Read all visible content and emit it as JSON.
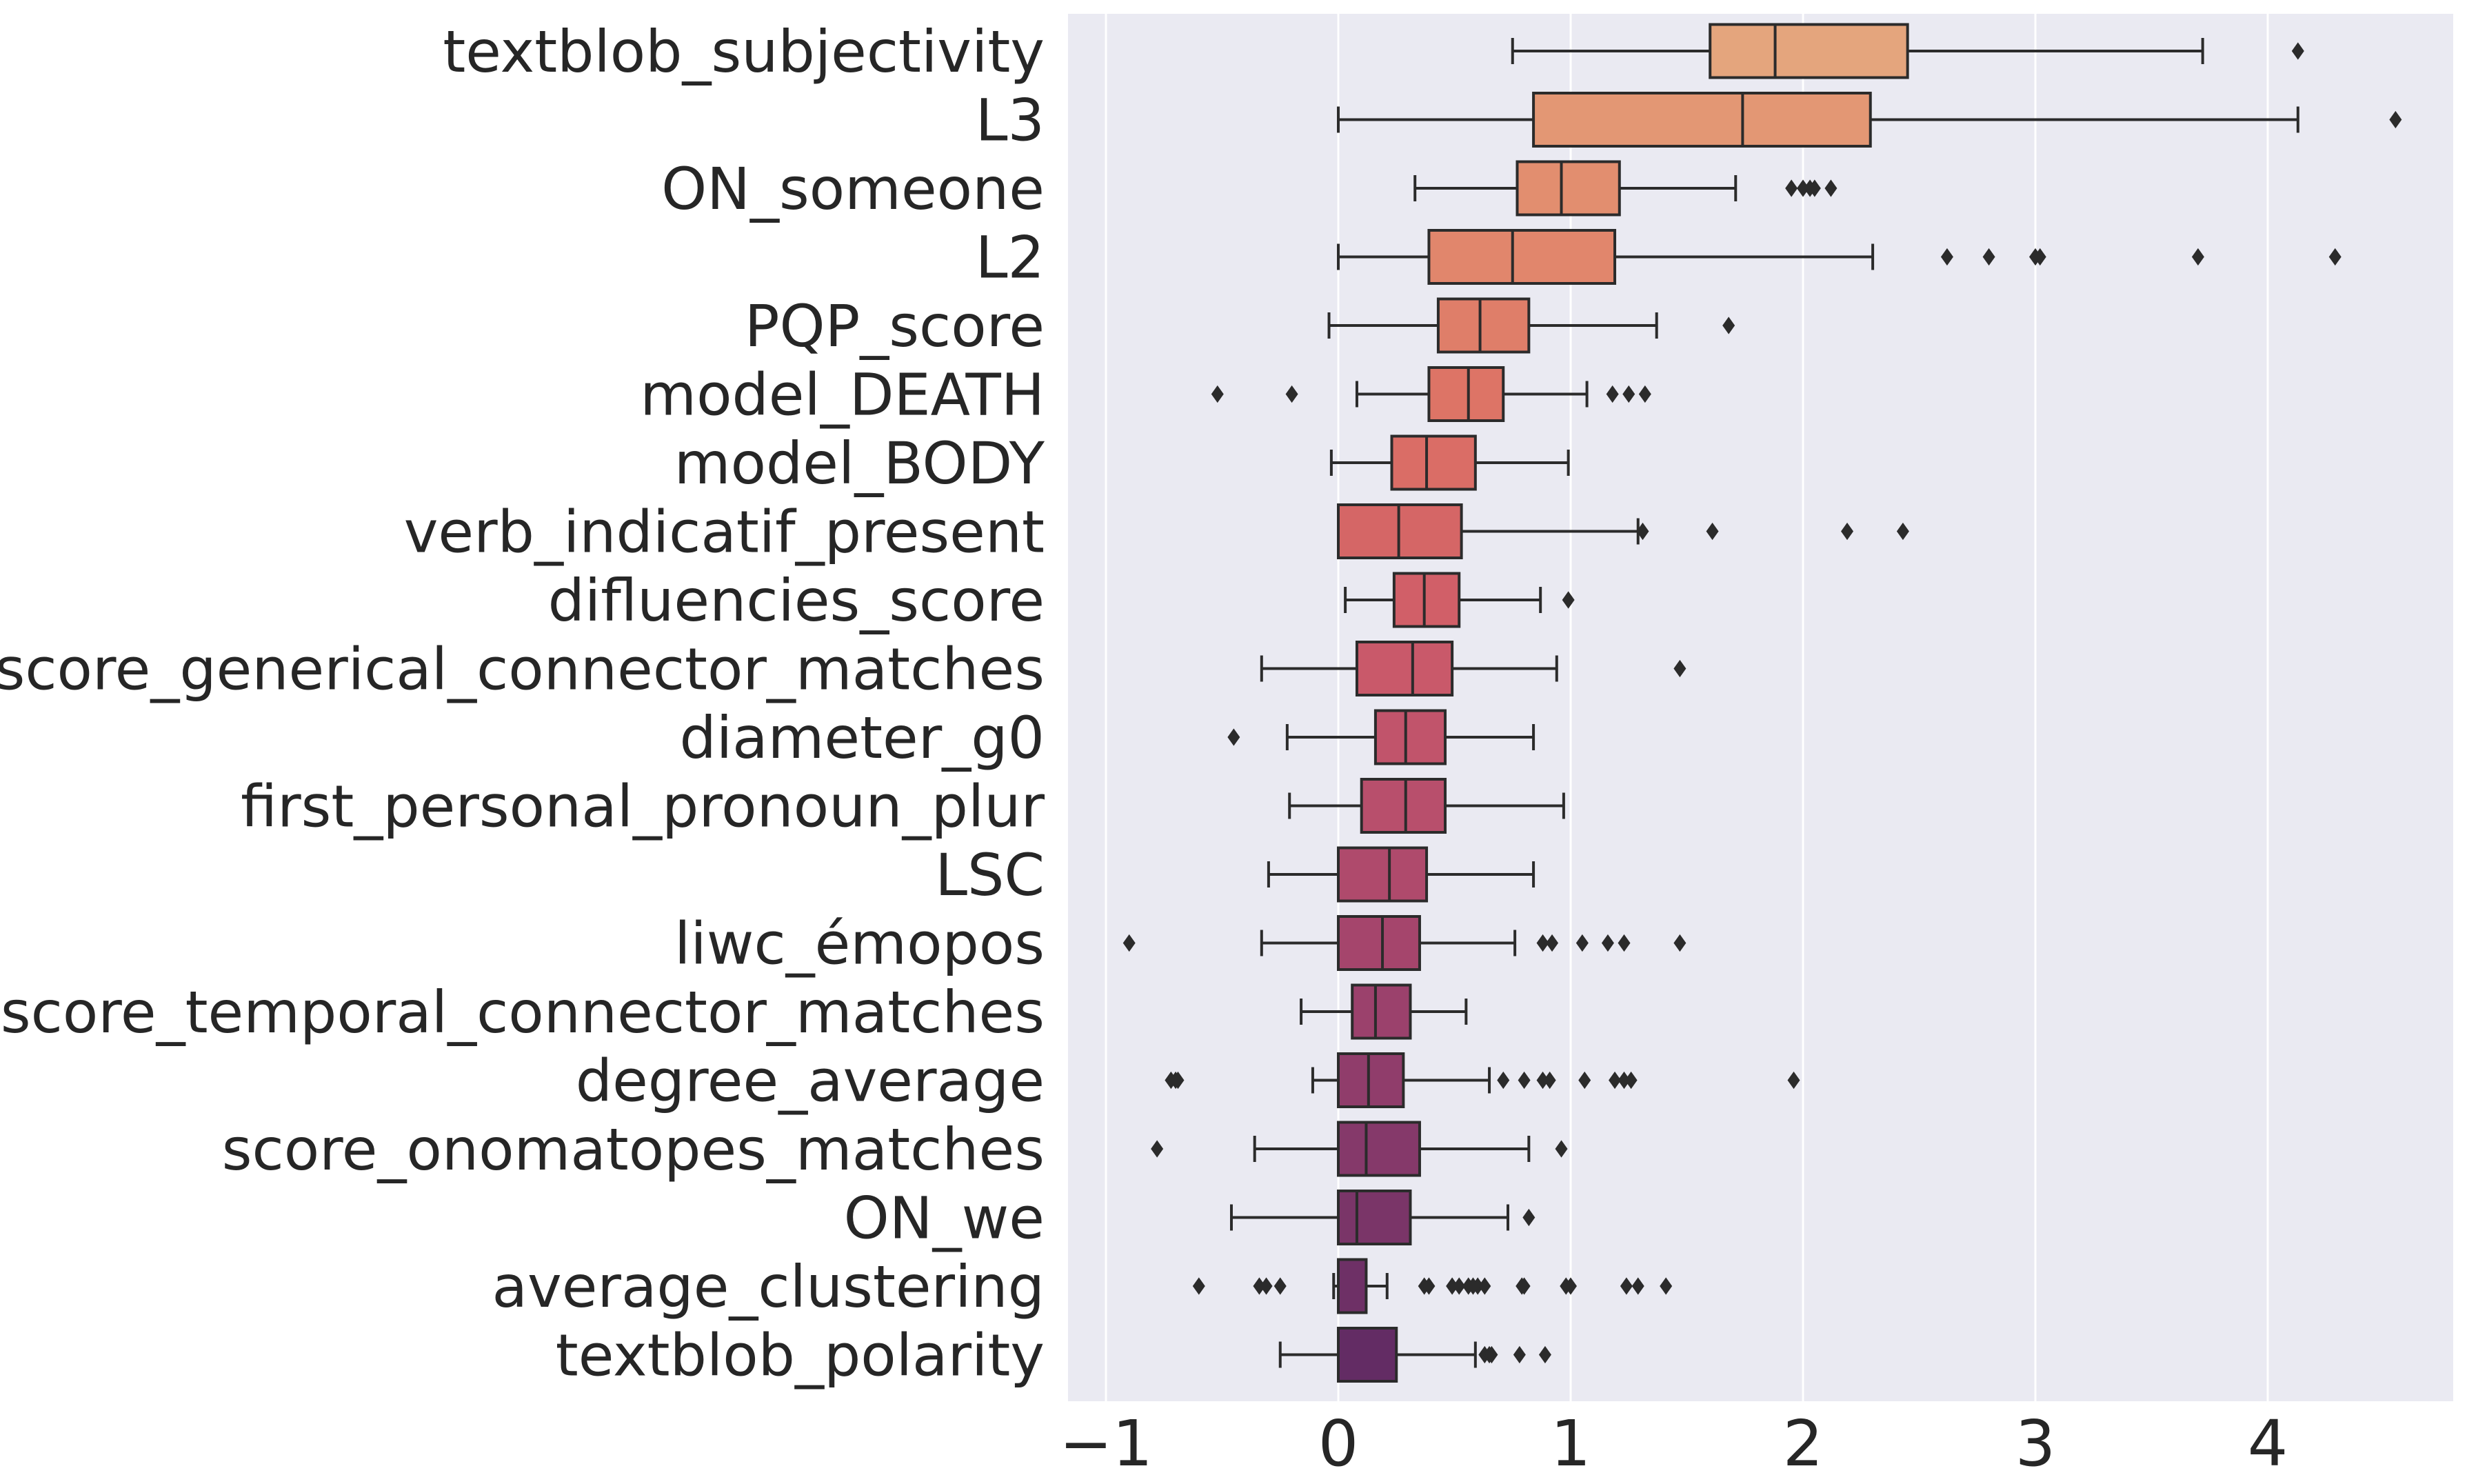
{
  "chart_data": {
    "type": "boxplot",
    "orientation": "horizontal",
    "title": "",
    "xlabel": "",
    "ylabel": "",
    "xlim": [
      -1.18,
      4.75
    ],
    "x_ticks": [
      -1,
      0,
      1,
      2,
      3,
      4
    ],
    "x_tick_labels": [
      "−1",
      "0",
      "1",
      "2",
      "3",
      "4"
    ],
    "grid": true,
    "background": "#EAEAF2",
    "palette": "flare",
    "categories": [
      {
        "label": "textblob_subjectivity",
        "whislo": 0.75,
        "q1": 1.6,
        "med": 1.88,
        "q3": 2.45,
        "whishi": 3.72,
        "fliers": [
          4.13
        ],
        "color": "#E4A57D"
      },
      {
        "label": "L3",
        "whislo": 0.0,
        "q1": 0.84,
        "med": 1.74,
        "q3": 2.29,
        "whishi": 4.13,
        "fliers": [
          4.55
        ],
        "color": "#E39774"
      },
      {
        "label": "ON_someone",
        "whislo": 0.33,
        "q1": 0.77,
        "med": 0.96,
        "q3": 1.21,
        "whishi": 1.71,
        "fliers": [
          1.95,
          2.0,
          2.03,
          2.05,
          2.12
        ],
        "color": "#E28E6F"
      },
      {
        "label": "L2",
        "whislo": 0.0,
        "q1": 0.39,
        "med": 0.75,
        "q3": 1.19,
        "whishi": 2.3,
        "fliers": [
          2.62,
          2.8,
          3.0,
          3.02,
          3.7,
          4.29
        ],
        "color": "#E1866C"
      },
      {
        "label": "PQP_score",
        "whislo": -0.04,
        "q1": 0.43,
        "med": 0.61,
        "q3": 0.82,
        "whishi": 1.37,
        "fliers": [
          1.68
        ],
        "color": "#DF7E69"
      },
      {
        "label": "model_DEATH",
        "whislo": 0.08,
        "q1": 0.39,
        "med": 0.56,
        "q3": 0.71,
        "whishi": 1.07,
        "fliers": [
          -0.52,
          -0.2,
          1.18,
          1.25,
          1.32
        ],
        "color": "#DD7466"
      },
      {
        "label": "model_BODY",
        "whislo": -0.03,
        "q1": 0.23,
        "med": 0.38,
        "q3": 0.59,
        "whishi": 0.99,
        "fliers": [],
        "color": "#DA6D66"
      },
      {
        "label": "verb_indicatif_present",
        "whislo": 0.0,
        "q1": 0.0,
        "med": 0.26,
        "q3": 0.53,
        "whishi": 1.29,
        "fliers": [
          1.31,
          1.61,
          2.19,
          2.43
        ],
        "color": "#D56666"
      },
      {
        "label": "difluencies_score",
        "whislo": 0.03,
        "q1": 0.24,
        "med": 0.37,
        "q3": 0.52,
        "whishi": 0.87,
        "fliers": [
          0.99
        ],
        "color": "#D15F68"
      },
      {
        "label": "score_generical_connector_matches",
        "whislo": -0.33,
        "q1": 0.08,
        "med": 0.32,
        "q3": 0.49,
        "whishi": 0.94,
        "fliers": [
          1.47
        ],
        "color": "#C9596A"
      },
      {
        "label": "diameter_g0",
        "whislo": -0.22,
        "q1": 0.16,
        "med": 0.29,
        "q3": 0.46,
        "whishi": 0.84,
        "fliers": [
          -0.45
        ],
        "color": "#C1546B"
      },
      {
        "label": "first_personal_pronoun_plur",
        "whislo": -0.21,
        "q1": 0.1,
        "med": 0.29,
        "q3": 0.46,
        "whishi": 0.97,
        "fliers": [],
        "color": "#B84F6C"
      },
      {
        "label": "LSC",
        "whislo": -0.3,
        "q1": 0.0,
        "med": 0.22,
        "q3": 0.38,
        "whishi": 0.84,
        "fliers": [],
        "color": "#AF4A6C"
      },
      {
        "label": "liwc_émopos",
        "whislo": -0.33,
        "q1": 0.0,
        "med": 0.19,
        "q3": 0.35,
        "whishi": 0.76,
        "fliers": [
          -0.9,
          0.88,
          0.92,
          1.05,
          1.16,
          1.23,
          1.47
        ],
        "color": "#A5456C"
      },
      {
        "label": "score_temporal_connector_matches",
        "whislo": -0.16,
        "q1": 0.06,
        "med": 0.16,
        "q3": 0.31,
        "whishi": 0.55,
        "fliers": [],
        "color": "#9B416C"
      },
      {
        "label": "degree_average",
        "whislo": -0.11,
        "q1": 0.0,
        "med": 0.13,
        "q3": 0.28,
        "whishi": 0.65,
        "fliers": [
          -0.72,
          -0.7,
          -0.69,
          0.71,
          0.8,
          0.88,
          0.91,
          1.06,
          1.19,
          1.23,
          1.26,
          1.96
        ],
        "color": "#903D6B"
      },
      {
        "label": "score_onomatopes_matches",
        "whislo": -0.36,
        "q1": 0.0,
        "med": 0.12,
        "q3": 0.35,
        "whishi": 0.82,
        "fliers": [
          -0.78,
          0.96
        ],
        "color": "#85396A"
      },
      {
        "label": "ON_we",
        "whislo": -0.46,
        "q1": 0.0,
        "med": 0.08,
        "q3": 0.31,
        "whishi": 0.73,
        "fliers": [
          0.82
        ],
        "color": "#7A3568"
      },
      {
        "label": "average_clustering",
        "whislo": -0.02,
        "q1": 0.0,
        "med": 0.0,
        "q3": 0.12,
        "whishi": 0.21,
        "fliers": [
          -0.6,
          -0.34,
          -0.31,
          -0.25,
          0.37,
          0.39,
          0.49,
          0.52,
          0.56,
          0.58,
          0.6,
          0.63,
          0.79,
          0.8,
          0.98,
          1.0,
          1.24,
          1.29,
          1.41
        ],
        "color": "#6E3066"
      },
      {
        "label": "textblob_polarity",
        "whislo": -0.25,
        "q1": 0.0,
        "med": 0.0,
        "q3": 0.25,
        "whishi": 0.59,
        "fliers": [
          0.63,
          0.65,
          0.66,
          0.78,
          0.89
        ],
        "color": "#632C64"
      }
    ]
  }
}
